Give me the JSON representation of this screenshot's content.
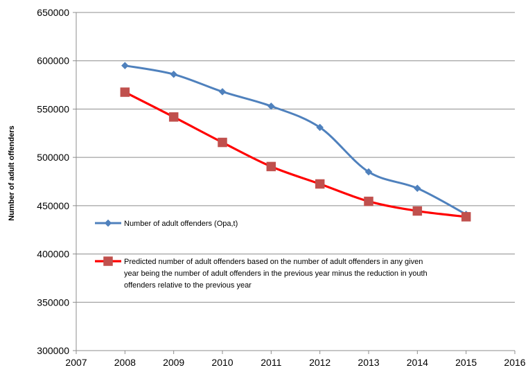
{
  "chart_data": {
    "type": "line",
    "title": "",
    "xlabel": "",
    "ylabel": "Number of adult offenders",
    "xlim": [
      2007,
      2016
    ],
    "ylim": [
      300000,
      650000
    ],
    "x_ticks": [
      "2007",
      "2008",
      "2009",
      "2010",
      "2011",
      "2012",
      "2013",
      "2014",
      "2015",
      "2016"
    ],
    "y_ticks": [
      "300000",
      "350000",
      "400000",
      "450000",
      "500000",
      "550000",
      "600000",
      "650000"
    ],
    "grid": "horizontal",
    "legend_position": "inside-lower-left",
    "x": [
      2008,
      2009,
      2010,
      2011,
      2012,
      2013,
      2014,
      2015
    ],
    "series": [
      {
        "name": "Number of adult offenders (Opa,t)",
        "color": "#4f81bd",
        "marker": "diamond",
        "values": [
          595000,
          586000,
          568000,
          553000,
          531000,
          485000,
          468000,
          441000
        ]
      },
      {
        "name": "Predicted number of adult offenders based on the number of adult offenders in any given year being the number of adult offenders in the previous year minus the reduction in youth offenders relative to the previous year",
        "legend_lines": [
          "Predicted number of adult offenders based on the number of adult offenders in any given",
          "year being the number of adult offenders in the previous year minus the reduction in youth",
          "offenders relative to the previous year"
        ],
        "color": "#ff0000",
        "marker_color": "#c0504d",
        "marker": "square",
        "values": [
          567500,
          541800,
          515500,
          490500,
          472500,
          454500,
          444500,
          438500
        ]
      }
    ]
  }
}
